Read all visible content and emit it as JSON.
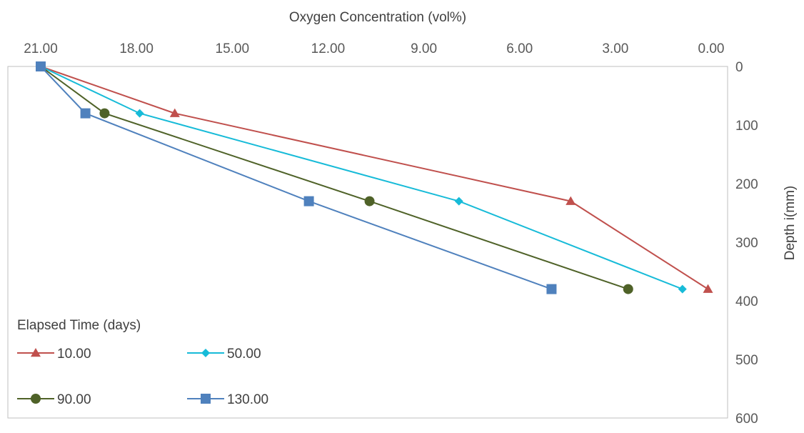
{
  "chart_data": {
    "type": "line",
    "xlabel": "Oxygen Concentration (vol%)",
    "ylabel": "Depth i(mm)",
    "x_axis": {
      "min": 0,
      "max": 21,
      "reversed": true,
      "position": "top",
      "ticks": [
        "21.00",
        "18.00",
        "15.00",
        "12.00",
        "9.00",
        "6.00",
        "3.00",
        "0.00"
      ]
    },
    "y_axis": {
      "min": 0,
      "max": 600,
      "reversed": true,
      "position": "right",
      "ticks": [
        "0",
        "100",
        "200",
        "300",
        "400",
        "500",
        "600"
      ]
    },
    "legend": {
      "title": "Elapsed Time (days)",
      "position": "bottom-left"
    },
    "series": [
      {
        "name": "10.00",
        "color": "#C0504D",
        "marker": "triangle",
        "x": [
          21.0,
          16.8,
          4.4,
          0.1
        ],
        "y": [
          0,
          80,
          230,
          380
        ]
      },
      {
        "name": "50.00",
        "color": "#17BBD8",
        "marker": "diamond",
        "x": [
          21.0,
          17.9,
          7.9,
          0.9
        ],
        "y": [
          0,
          80,
          230,
          380
        ]
      },
      {
        "name": "90.00",
        "color": "#4F6228",
        "marker": "circle",
        "x": [
          21.0,
          19.0,
          10.7,
          2.6
        ],
        "y": [
          0,
          80,
          230,
          380
        ]
      },
      {
        "name": "130.00",
        "color": "#4F81BD",
        "marker": "square",
        "x": [
          21.0,
          19.6,
          12.6,
          5.0
        ],
        "y": [
          0,
          80,
          230,
          380
        ]
      }
    ]
  }
}
